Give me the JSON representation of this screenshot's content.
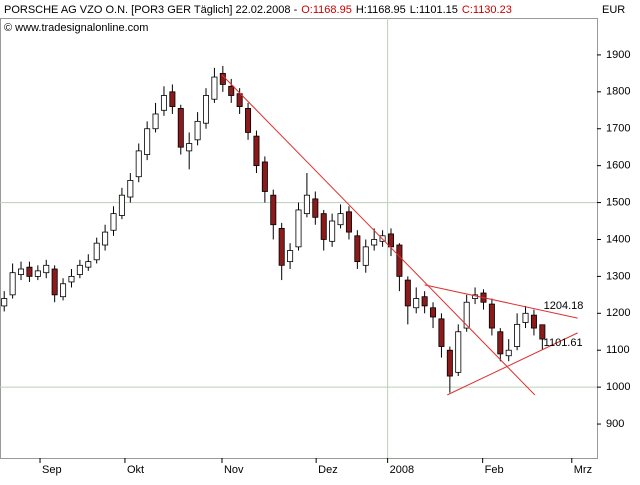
{
  "chart_data": {
    "type": "candlestick",
    "title": "PORSCHE AG VZO O.N. [POR3 GER  Täglich] 22.02.2008 -",
    "ohlc_labels": [
      "O:1168.95",
      "H:1168.95",
      "L:1101.15",
      "C:1130.23"
    ],
    "subtitle": "© www.tradesignalonline.com",
    "y_axis_label": "EUR",
    "open": [
      1220,
      1250,
      1305,
      1325,
      1300,
      1310,
      1320,
      1245,
      1285,
      1305,
      1325,
      1345,
      1385,
      1425,
      1465,
      1515,
      1570,
      1630,
      1700,
      1750,
      1800,
      1755,
      1640,
      1670,
      1715,
      1780,
      1850,
      1815,
      1795,
      1755,
      1680,
      1610,
      1520,
      1430,
      1340,
      1380,
      1470,
      1510,
      1470,
      1395,
      1440,
      1475,
      1410,
      1330,
      1385,
      1395,
      1415,
      1385,
      1290,
      1215,
      1245,
      1215,
      1185,
      1100,
      1040,
      1160,
      1240,
      1255,
      1225,
      1150,
      1085,
      1110,
      1175,
      1195,
      1168.95
    ],
    "high": [
      1260,
      1335,
      1340,
      1340,
      1330,
      1345,
      1330,
      1295,
      1320,
      1345,
      1360,
      1405,
      1440,
      1490,
      1540,
      1580,
      1660,
      1720,
      1770,
      1815,
      1820,
      1765,
      1690,
      1745,
      1810,
      1865,
      1870,
      1835,
      1810,
      1770,
      1695,
      1625,
      1535,
      1445,
      1390,
      1500,
      1580,
      1530,
      1480,
      1470,
      1495,
      1490,
      1425,
      1400,
      1430,
      1425,
      1430,
      1390,
      1300,
      1270,
      1260,
      1230,
      1200,
      1110,
      1170,
      1250,
      1270,
      1265,
      1240,
      1160,
      1130,
      1200,
      1220,
      1210,
      1168.95
    ],
    "low": [
      1205,
      1240,
      1290,
      1285,
      1290,
      1295,
      1230,
      1235,
      1270,
      1295,
      1315,
      1335,
      1370,
      1410,
      1455,
      1500,
      1555,
      1615,
      1690,
      1735,
      1740,
      1630,
      1590,
      1655,
      1700,
      1770,
      1800,
      1770,
      1740,
      1670,
      1580,
      1500,
      1400,
      1290,
      1320,
      1370,
      1460,
      1440,
      1370,
      1380,
      1430,
      1400,
      1320,
      1310,
      1370,
      1380,
      1355,
      1260,
      1170,
      1200,
      1200,
      1160,
      1080,
      985,
      1030,
      1150,
      1225,
      1210,
      1140,
      1070,
      1070,
      1100,
      1160,
      1140,
      1101.15
    ],
    "close": [
      1240,
      1310,
      1320,
      1300,
      1315,
      1330,
      1250,
      1280,
      1300,
      1330,
      1340,
      1390,
      1420,
      1470,
      1520,
      1560,
      1640,
      1700,
      1740,
      1790,
      1760,
      1650,
      1660,
      1720,
      1790,
      1840,
      1820,
      1790,
      1760,
      1690,
      1600,
      1530,
      1440,
      1330,
      1370,
      1480,
      1520,
      1460,
      1400,
      1450,
      1470,
      1420,
      1340,
      1380,
      1400,
      1410,
      1380,
      1300,
      1220,
      1240,
      1220,
      1190,
      1110,
      1030,
      1150,
      1230,
      1250,
      1230,
      1160,
      1090,
      1100,
      1170,
      1200,
      1160,
      1130.23
    ],
    "up_color": "#ffffff",
    "down_color": "#8b1a1a",
    "line_color": "#e03030",
    "xlim": [
      -0.5,
      70.5
    ],
    "xticks": [
      {
        "value": 4.26,
        "label": "Sep"
      },
      {
        "value": 14.36,
        "label": "Okt"
      },
      {
        "value": 25.9,
        "label": "Nov"
      },
      {
        "value": 37.1,
        "label": "Dez"
      },
      {
        "value": 45.6,
        "label": "2008"
      },
      {
        "value": 56.9,
        "label": "Feb"
      },
      {
        "value": 67.5,
        "label": "Mrz"
      }
    ],
    "ylim": [
      808,
      2000
    ],
    "yticks": [
      900,
      1000,
      1100,
      1200,
      1300,
      1400,
      1500,
      1600,
      1700,
      1800,
      1900
    ],
    "grid": true,
    "trendlines": [
      {
        "x": [
          25.9,
          63.1
        ],
        "y": [
          1846,
          979
        ]
      },
      {
        "x": [
          50.0,
          68.2
        ],
        "y": [
          1277,
          1187
        ],
        "label": "1204.18"
      },
      {
        "x": [
          52.7,
          68.2
        ],
        "y": [
          979,
          1147
        ],
        "label": "1101.61"
      }
    ]
  }
}
